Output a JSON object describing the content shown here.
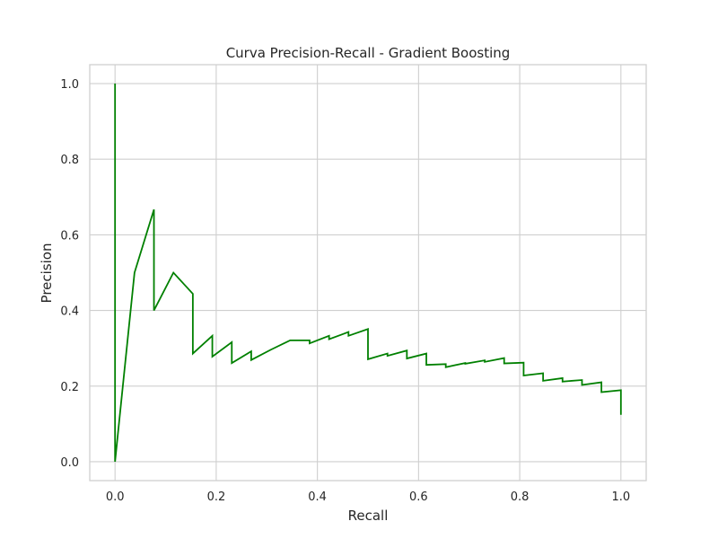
{
  "chart_data": {
    "type": "line",
    "title": "Curva Precision-Recall - Gradient Boosting",
    "xlabel": "Recall",
    "ylabel": "Precision",
    "xlim": [
      -0.05,
      1.05
    ],
    "ylim": [
      -0.05,
      1.05
    ],
    "xticks": [
      0.0,
      0.2,
      0.4,
      0.6,
      0.8,
      1.0
    ],
    "xtick_labels": [
      "0.0",
      "0.2",
      "0.4",
      "0.6",
      "0.8",
      "1.0"
    ],
    "yticks": [
      0.0,
      0.2,
      0.4,
      0.6,
      0.8,
      1.0
    ],
    "ytick_labels": [
      "0.0",
      "0.2",
      "0.4",
      "0.6",
      "0.8",
      "1.0"
    ],
    "grid": true,
    "legend": "none",
    "line_color": "#008000",
    "series": [
      {
        "x": [
          0.0,
          0.0,
          0.0385,
          0.0769,
          0.0769,
          0.1154,
          0.1538,
          0.1538,
          0.1923,
          0.1923,
          0.2308,
          0.2308,
          0.2692,
          0.2692,
          0.3077,
          0.3462,
          0.3846,
          0.3846,
          0.4231,
          0.4231,
          0.4615,
          0.4615,
          0.5,
          0.5,
          0.5385,
          0.5385,
          0.5769,
          0.5769,
          0.6154,
          0.6154,
          0.6538,
          0.6538,
          0.6923,
          0.6923,
          0.7308,
          0.7308,
          0.7692,
          0.7692,
          0.8077,
          0.8077,
          0.8462,
          0.8462,
          0.8846,
          0.8846,
          0.9231,
          0.9231,
          0.9615,
          0.9615,
          1.0,
          1.0
        ],
        "y": [
          1.0,
          0.0,
          0.5,
          0.667,
          0.4,
          0.5,
          0.444,
          0.286,
          0.333,
          0.278,
          0.316,
          0.261,
          0.292,
          0.269,
          0.296,
          0.321,
          0.321,
          0.313,
          0.333,
          0.324,
          0.343,
          0.333,
          0.351,
          0.271,
          0.286,
          0.28,
          0.294,
          0.273,
          0.286,
          0.256,
          0.258,
          0.25,
          0.261,
          0.259,
          0.268,
          0.264,
          0.274,
          0.26,
          0.262,
          0.228,
          0.234,
          0.214,
          0.221,
          0.212,
          0.216,
          0.203,
          0.21,
          0.184,
          0.189,
          0.124
        ]
      }
    ]
  }
}
